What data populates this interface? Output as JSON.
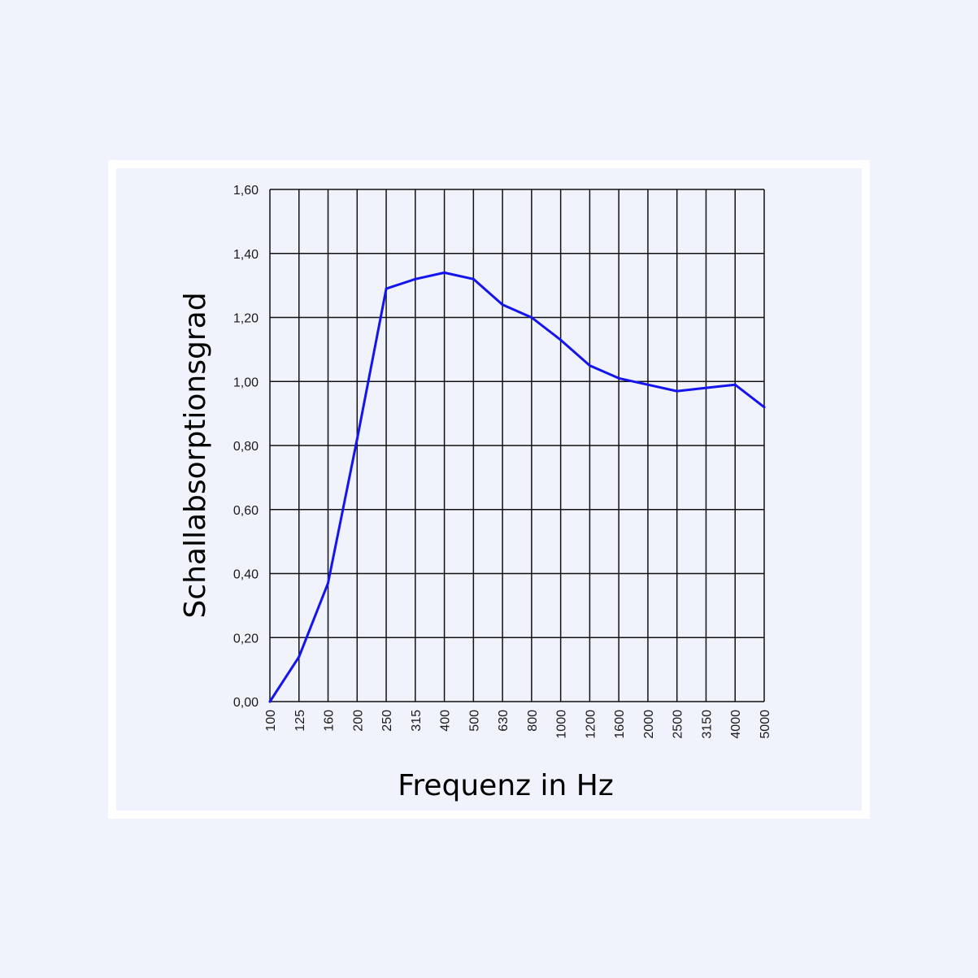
{
  "chart_data": {
    "type": "line",
    "xlabel": "Frequenz in Hz",
    "ylabel": "Schallabsorptionsgrad",
    "categories": [
      "100",
      "125",
      "160",
      "200",
      "250",
      "315",
      "400",
      "500",
      "630",
      "800",
      "1000",
      "1200",
      "1600",
      "2000",
      "2500",
      "3150",
      "4000",
      "5000"
    ],
    "y_ticks": [
      "0,00",
      "0,20",
      "0,40",
      "0,60",
      "0,80",
      "1,00",
      "1,20",
      "1,40",
      "1,60"
    ],
    "ylim": [
      0,
      1.6
    ],
    "grid": true,
    "series": [
      {
        "color": "#1414ee",
        "values": [
          0.0,
          0.14,
          0.37,
          0.82,
          1.29,
          1.32,
          1.34,
          1.32,
          1.24,
          1.2,
          1.13,
          1.05,
          1.01,
          0.99,
          0.97,
          0.98,
          0.99,
          0.92
        ]
      }
    ]
  }
}
